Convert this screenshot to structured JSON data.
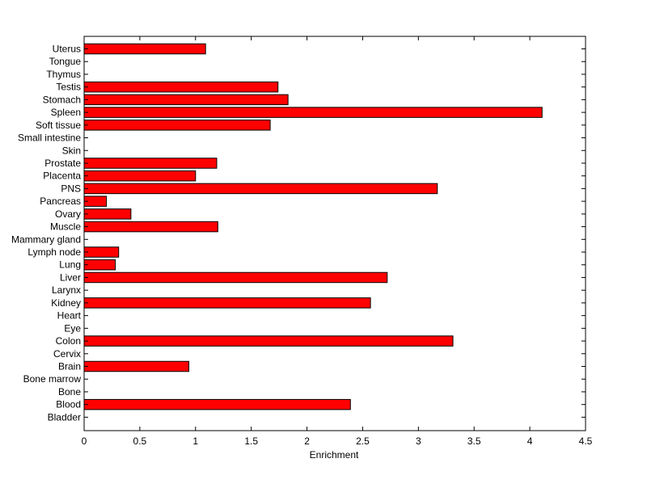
{
  "chart_data": {
    "type": "bar",
    "orientation": "horizontal",
    "title": "",
    "xlabel": "Enrichment",
    "ylabel": "",
    "xlim": [
      0,
      4.5
    ],
    "xticks": [
      0,
      0.5,
      1,
      1.5,
      2,
      2.5,
      3,
      3.5,
      4,
      4.5
    ],
    "xtick_labels": [
      "0",
      "0.5",
      "1",
      "1.5",
      "2",
      "2.5",
      "3",
      "3.5",
      "4",
      "4.5"
    ],
    "grid": false,
    "legend": "none",
    "bar_color": "#ff0000",
    "bar_edge_color": "#000000",
    "categories": [
      "Uterus",
      "Tongue",
      "Thymus",
      "Testis",
      "Stomach",
      "Spleen",
      "Soft tissue",
      "Small intestine",
      "Skin",
      "Prostate",
      "Placenta",
      "PNS",
      "Pancreas",
      "Ovary",
      "Muscle",
      "Mammary gland",
      "Lymph node",
      "Lung",
      "Liver",
      "Larynx",
      "Kidney",
      "Heart",
      "Eye",
      "Colon",
      "Cervix",
      "Brain",
      "Bone marrow",
      "Bone",
      "Blood",
      "Bladder"
    ],
    "values": [
      1.09,
      0,
      0,
      1.74,
      1.83,
      4.11,
      1.67,
      0,
      0,
      1.19,
      1.0,
      3.17,
      0.2,
      0.42,
      1.2,
      0,
      0.31,
      0.28,
      2.72,
      0,
      2.57,
      0,
      0,
      3.31,
      0,
      0.94,
      0,
      0,
      2.39,
      0
    ]
  }
}
